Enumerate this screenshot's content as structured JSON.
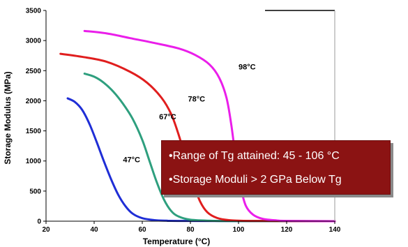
{
  "chart_data": {
    "type": "line",
    "xlabel": "Temperature (°C)",
    "ylabel": "Storage Modulus (MPa)",
    "xlim": [
      20,
      140
    ],
    "ylim": [
      0,
      3500
    ],
    "x_ticks": [
      "20",
      "40",
      "60",
      "80",
      "100",
      "120",
      "140"
    ],
    "y_ticks": [
      "0",
      "500",
      "1000",
      "1500",
      "2000",
      "2500",
      "3000",
      "3500"
    ],
    "grid": false,
    "series": [
      {
        "name": "47°C",
        "color": "#1f2ed6",
        "points": [
          [
            29,
            2040
          ],
          [
            32,
            1980
          ],
          [
            35,
            1850
          ],
          [
            38,
            1620
          ],
          [
            41,
            1320
          ],
          [
            44,
            1000
          ],
          [
            47,
            700
          ],
          [
            50,
            440
          ],
          [
            53,
            250
          ],
          [
            56,
            125
          ],
          [
            60,
            50
          ],
          [
            65,
            18
          ],
          [
            70,
            8
          ],
          [
            78,
            4
          ],
          [
            140,
            0
          ]
        ]
      },
      {
        "name": "67°C",
        "color": "#2e9f7e",
        "points": [
          [
            36,
            2450
          ],
          [
            40,
            2400
          ],
          [
            44,
            2300
          ],
          [
            48,
            2150
          ],
          [
            52,
            1950
          ],
          [
            56,
            1700
          ],
          [
            60,
            1350
          ],
          [
            63,
            1000
          ],
          [
            66,
            650
          ],
          [
            69,
            360
          ],
          [
            72,
            170
          ],
          [
            75,
            80
          ],
          [
            80,
            25
          ],
          [
            90,
            6
          ],
          [
            100,
            2
          ],
          [
            140,
            0
          ]
        ]
      },
      {
        "name": "78°C",
        "color": "#e01e1e",
        "points": [
          [
            26,
            2780
          ],
          [
            35,
            2730
          ],
          [
            45,
            2650
          ],
          [
            55,
            2480
          ],
          [
            62,
            2300
          ],
          [
            68,
            2050
          ],
          [
            72,
            1780
          ],
          [
            75,
            1450
          ],
          [
            78,
            1050
          ],
          [
            81,
            650
          ],
          [
            84,
            330
          ],
          [
            87,
            150
          ],
          [
            91,
            55
          ],
          [
            96,
            18
          ],
          [
            105,
            5
          ],
          [
            140,
            0
          ]
        ]
      },
      {
        "name": "98°C",
        "color": "#ea1eea",
        "points": [
          [
            36,
            3160
          ],
          [
            45,
            3120
          ],
          [
            55,
            3040
          ],
          [
            65,
            2960
          ],
          [
            75,
            2870
          ],
          [
            82,
            2760
          ],
          [
            88,
            2600
          ],
          [
            92,
            2380
          ],
          [
            95,
            2050
          ],
          [
            97,
            1600
          ],
          [
            99,
            1000
          ],
          [
            101,
            550
          ],
          [
            103,
            260
          ],
          [
            106,
            110
          ],
          [
            110,
            40
          ],
          [
            116,
            12
          ],
          [
            120,
            5
          ],
          [
            140,
            0
          ]
        ]
      }
    ],
    "labels": [
      {
        "text": "98°C",
        "x": 100,
        "y": 2520
      },
      {
        "text": "78°C",
        "x": 79,
        "y": 1990
      },
      {
        "text": "67°C",
        "x": 67,
        "y": 1690
      },
      {
        "text": "47°C",
        "x": 52,
        "y": 980
      }
    ]
  },
  "callout": {
    "line1": "•Range of Tg attained: 45 - 106 °C",
    "line2": "•Storage Moduli  >  2 GPa Below Tg"
  },
  "colors": {
    "box_fill": "#8b1313",
    "axis": "#000000"
  }
}
